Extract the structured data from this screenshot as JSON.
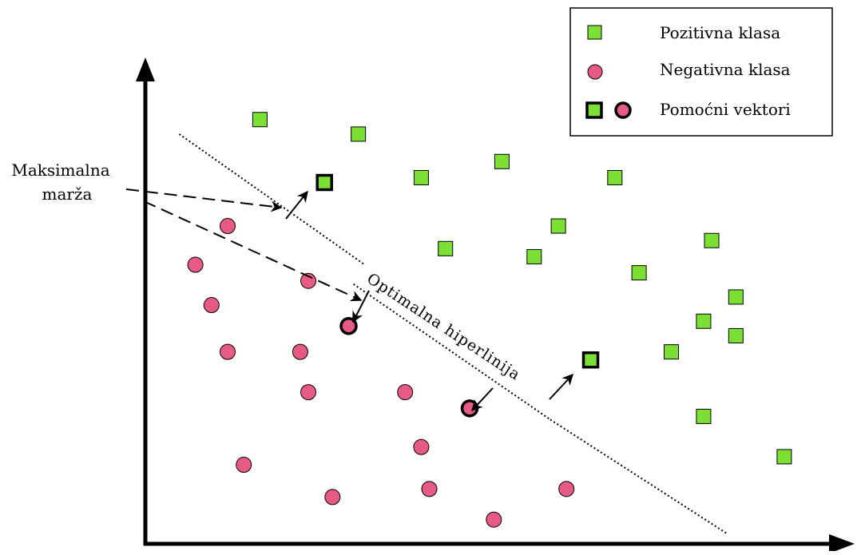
{
  "legend": {
    "positive_label": "Pozitivna klasa",
    "negative_label": "Negativna klasa",
    "support_label": "Pomoćni vektori"
  },
  "annotations": {
    "margin_line1": "Maksimalna",
    "margin_line2": "marža",
    "hyperplane_label": "Optimalna hiperlinija"
  },
  "colors": {
    "positive_fill": "#7be033",
    "negative_fill": "#e75a86",
    "stroke": "#000000",
    "background": "#ffffff"
  },
  "points": {
    "positive": [
      [
        7.1,
        26.3
      ],
      [
        13.2,
        25.4
      ],
      [
        17.1,
        22.7
      ],
      [
        22.1,
        23.7
      ],
      [
        29.1,
        22.7
      ],
      [
        25.6,
        19.7
      ],
      [
        18.6,
        18.3
      ],
      [
        24.1,
        17.8
      ],
      [
        35.1,
        18.8
      ],
      [
        30.6,
        16.8
      ],
      [
        36.6,
        15.3
      ],
      [
        34.6,
        13.8
      ],
      [
        36.6,
        12.9
      ],
      [
        32.6,
        11.9
      ],
      [
        34.6,
        7.9
      ],
      [
        39.6,
        5.4
      ]
    ],
    "negative": [
      [
        5.1,
        19.7
      ],
      [
        3.1,
        17.3
      ],
      [
        10.1,
        16.3
      ],
      [
        4.1,
        14.8
      ],
      [
        5.1,
        11.9
      ],
      [
        9.6,
        11.9
      ],
      [
        10.1,
        9.4
      ],
      [
        16.1,
        9.4
      ],
      [
        6.1,
        4.9
      ],
      [
        17.1,
        6.0
      ],
      [
        11.6,
        2.9
      ],
      [
        17.6,
        3.4
      ],
      [
        26.1,
        3.4
      ],
      [
        21.6,
        1.5
      ]
    ],
    "support_positive": [
      [
        11.1,
        22.4
      ],
      [
        27.6,
        11.4
      ]
    ],
    "support_negative": [
      [
        12.6,
        13.5
      ],
      [
        20.1,
        8.4
      ]
    ]
  },
  "lines": {
    "margin_upper": [
      [
        2.1,
        25.4
      ],
      [
        13.6,
        17.3
      ]
    ],
    "hyperplane": [
      [
        12.9,
        16.1
      ],
      [
        25.1,
        7.7
      ],
      [
        36.1,
        0.6
      ]
    ]
  }
}
